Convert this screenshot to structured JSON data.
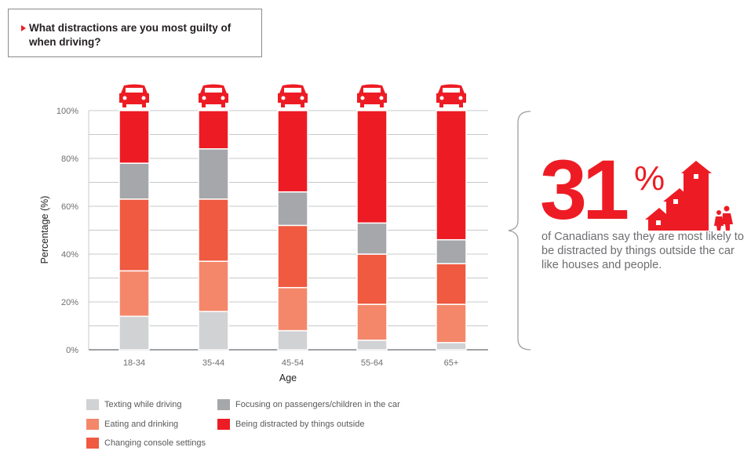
{
  "title": "What distractions are you most guilty of when driving?",
  "chart_data": {
    "type": "bar",
    "stacked": true,
    "title": "What distractions are you most guilty of when driving?",
    "xlabel": "Age",
    "ylabel": "Percentage (%)",
    "ylim": [
      0,
      100
    ],
    "yticks": [
      "0%",
      "20%",
      "40%",
      "60%",
      "80%",
      "100%"
    ],
    "grid": true,
    "legend_position": "bottom",
    "categories": [
      "18-34",
      "35-44",
      "45-54",
      "55-64",
      "65+"
    ],
    "series": [
      {
        "name": "Texting while driving",
        "color": "#d1d2d4",
        "values": [
          14,
          16,
          8,
          4,
          3
        ]
      },
      {
        "name": "Eating and drinking",
        "color": "#f4876a",
        "values": [
          19,
          21,
          18,
          15,
          16
        ]
      },
      {
        "name": "Changing console settings",
        "color": "#ef5a40",
        "values": [
          30,
          26,
          26,
          21,
          17
        ]
      },
      {
        "name": "Focusing on passengers/children in the car",
        "color": "#a6a7aa",
        "values": [
          15,
          21,
          14,
          13,
          10
        ]
      },
      {
        "name": "Being distracted by things outside",
        "color": "#ed1c24",
        "values": [
          22,
          16,
          34,
          47,
          54
        ]
      }
    ]
  },
  "callout": {
    "number": "31",
    "percent_sign": "%",
    "text": "of Canadians say they are most likely to be distracted by things outside the car like houses and people.",
    "icons": [
      "houses-icon",
      "people-icon"
    ],
    "color": "#ed1c24"
  },
  "car_icons": [
    "sports-car-icon",
    "sedan-icon",
    "classic-car-icon",
    "van-icon",
    "vw-bus-icon"
  ]
}
